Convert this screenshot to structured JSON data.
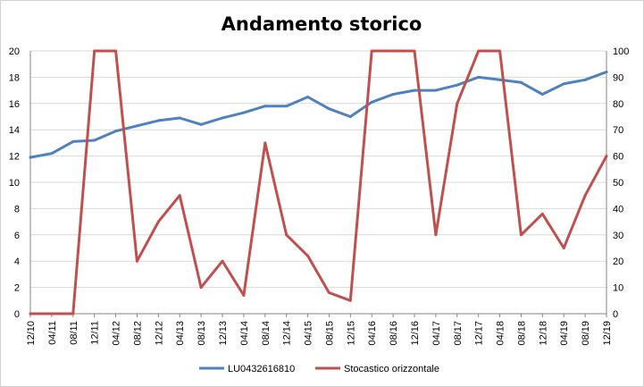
{
  "chart_data": {
    "type": "line",
    "title": "Andamento storico",
    "x": [
      "12/10",
      "04/11",
      "08/11",
      "12/11",
      "04/12",
      "08/12",
      "12/12",
      "04/13",
      "08/13",
      "12/13",
      "04/14",
      "08/14",
      "12/14",
      "04/15",
      "08/15",
      "12/15",
      "04/16",
      "08/16",
      "12/16",
      "04/17",
      "08/17",
      "12/17",
      "04/18",
      "08/18",
      "12/18",
      "04/19",
      "08/19",
      "12/19"
    ],
    "y_left": {
      "ylim": [
        0,
        20
      ],
      "ticks": [
        "0",
        "2",
        "4",
        "6",
        "8",
        "10",
        "12",
        "14",
        "16",
        "18",
        "20"
      ]
    },
    "y_right": {
      "ylim": [
        0,
        100
      ],
      "ticks": [
        "0",
        "10",
        "20",
        "30",
        "40",
        "50",
        "60",
        "70",
        "80",
        "90",
        "100"
      ]
    },
    "grid": true,
    "legend_position": "bottom",
    "series": [
      {
        "name": "LU0432616810",
        "axis": "left",
        "color": "#4f81bd",
        "values": [
          11.9,
          12.2,
          13.1,
          13.2,
          13.9,
          14.3,
          14.7,
          14.9,
          14.4,
          14.9,
          15.3,
          15.8,
          15.8,
          16.5,
          15.6,
          15.0,
          16.1,
          16.7,
          17.0,
          17.0,
          17.4,
          18.0,
          17.8,
          17.6,
          16.7,
          17.5,
          17.8,
          18.4
        ]
      },
      {
        "name": "Stocastico orizzontale",
        "axis": "right",
        "color": "#c0504d",
        "values": [
          0,
          0,
          0,
          100,
          100,
          20,
          35,
          45,
          10,
          20,
          7,
          65,
          30,
          22,
          8,
          5,
          100,
          100,
          100,
          30,
          80,
          100,
          100,
          30,
          38,
          25,
          45,
          60
        ]
      }
    ]
  }
}
